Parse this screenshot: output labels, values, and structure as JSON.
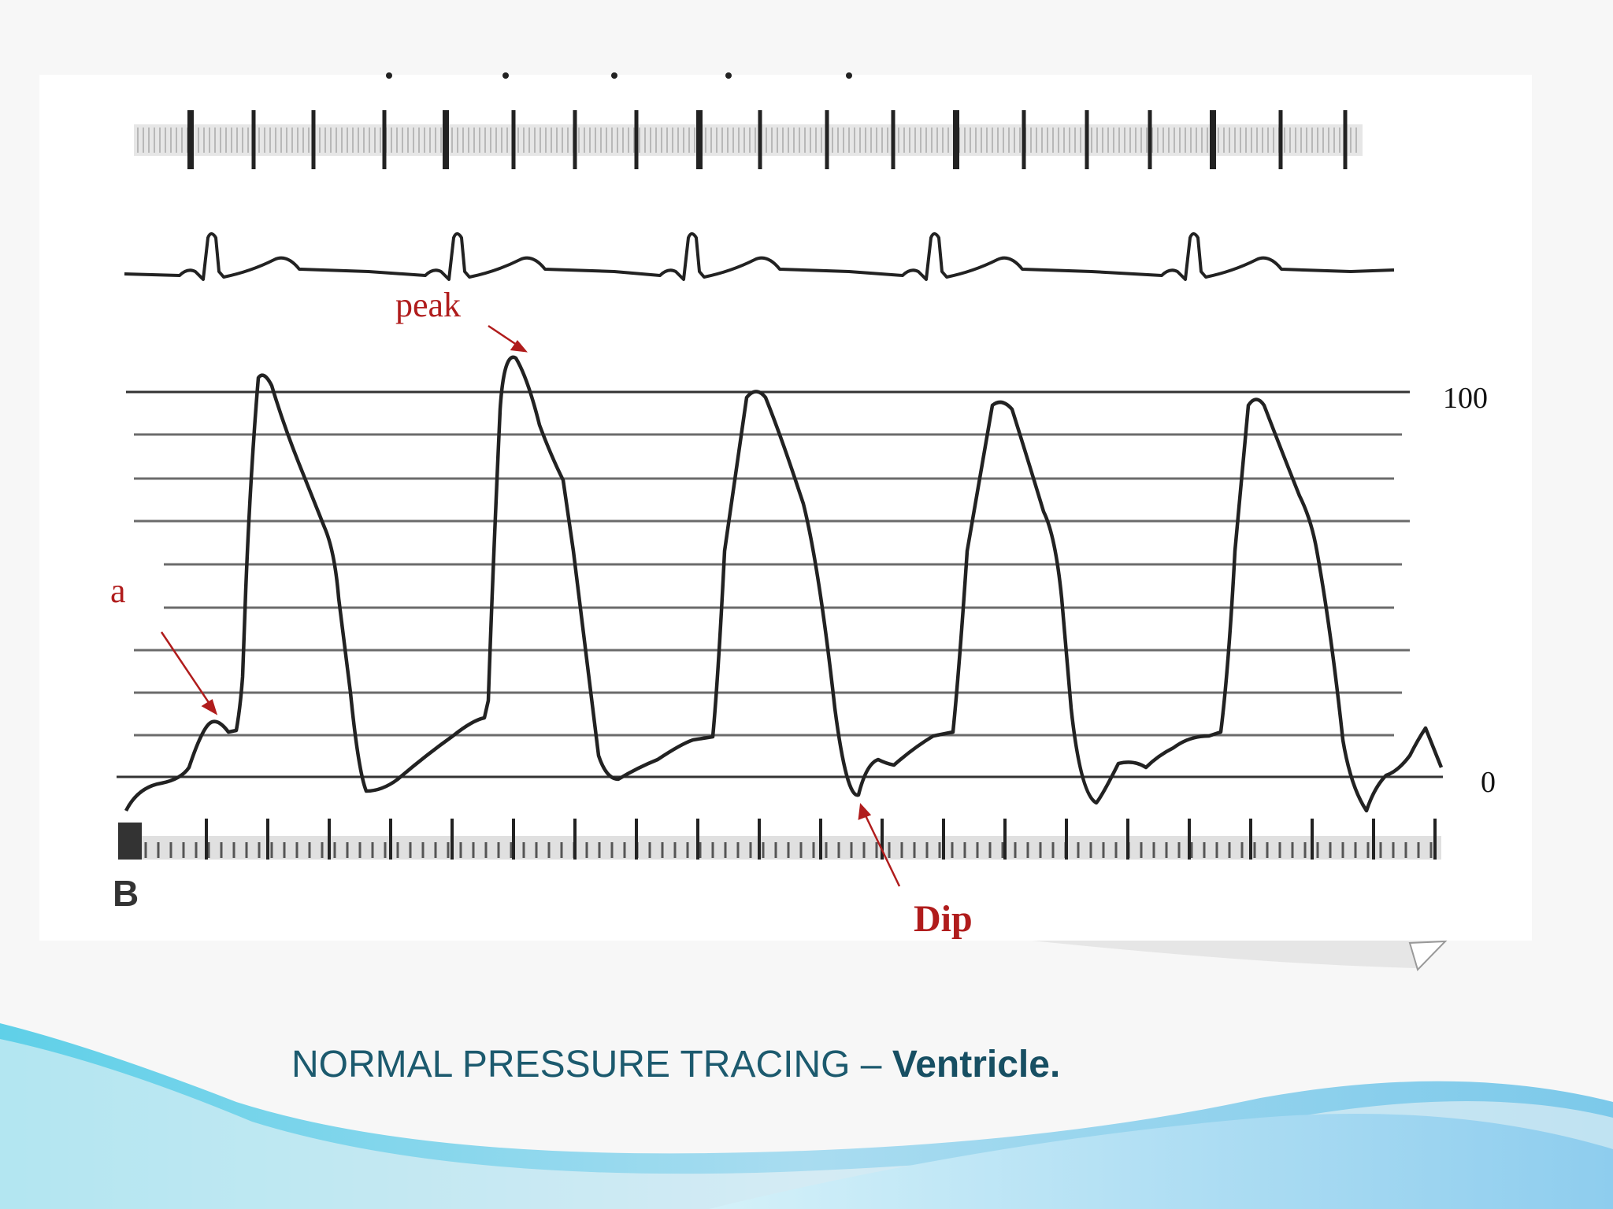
{
  "labels": {
    "peak": "peak",
    "a": "a",
    "dip": "Dip",
    "panel": "B"
  },
  "scale": {
    "top": "100",
    "bottom": "0"
  },
  "caption": {
    "text": "NORMAL PRESSURE TRACING – ",
    "bold": "Ventricle."
  },
  "colors": {
    "annotation": "#b01c1c",
    "caption": "#1c5a6e",
    "trace": "#222222",
    "wave": "#8fd3ee"
  }
}
